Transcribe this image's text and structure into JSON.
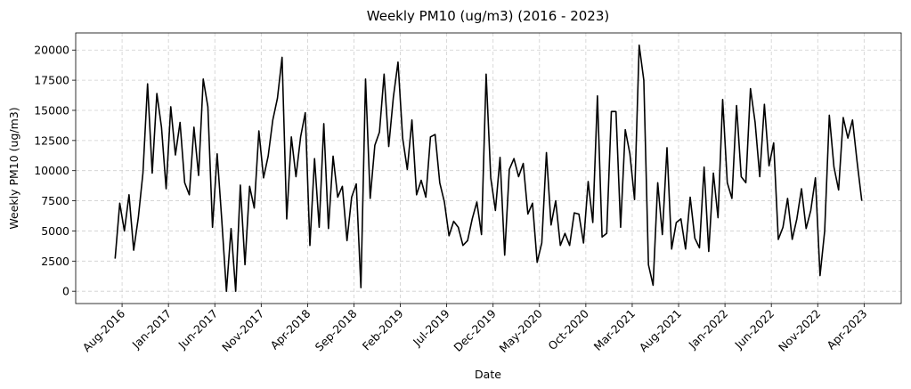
{
  "chart_data": {
    "type": "line",
    "title": "Weekly PM10 (ug/m3) (2016 - 2023)",
    "x_label": "Date",
    "y_label": "Weekly PM10 (ug/m3)",
    "color": "#000000",
    "grid": true,
    "xlim": [
      "2016-03",
      "2023-08"
    ],
    "ylim": [
      -1020,
      21420
    ],
    "yticks": [
      0,
      2500,
      5000,
      7500,
      10000,
      12500,
      15000,
      17500,
      20000
    ],
    "xticks": [
      {
        "value": "2016-08",
        "label": "Aug-2016"
      },
      {
        "value": "2017-01",
        "label": "Jan-2017"
      },
      {
        "value": "2017-06",
        "label": "Jun-2017"
      },
      {
        "value": "2017-11",
        "label": "Nov-2017"
      },
      {
        "value": "2018-04",
        "label": "Apr-2018"
      },
      {
        "value": "2018-09",
        "label": "Sep-2018"
      },
      {
        "value": "2019-02",
        "label": "Feb-2019"
      },
      {
        "value": "2019-07",
        "label": "Jul-2019"
      },
      {
        "value": "2019-12",
        "label": "Dec-2019"
      },
      {
        "value": "2020-05",
        "label": "May-2020"
      },
      {
        "value": "2020-10",
        "label": "Oct-2020"
      },
      {
        "value": "2021-03",
        "label": "Mar-2021"
      },
      {
        "value": "2021-08",
        "label": "Aug-2021"
      },
      {
        "value": "2022-01",
        "label": "Jan-2022"
      },
      {
        "value": "2022-06",
        "label": "Jun-2022"
      },
      {
        "value": "2022-11",
        "label": "Nov-2022"
      },
      {
        "value": "2023-04",
        "label": "Apr-2023"
      }
    ],
    "x": [
      "2016-07",
      "2016-07",
      "2016-08",
      "2016-08",
      "2016-09",
      "2016-09",
      "2016-10",
      "2016-10",
      "2016-11",
      "2016-11",
      "2016-12",
      "2016-12",
      "2017-01",
      "2017-01",
      "2017-02",
      "2017-02",
      "2017-03",
      "2017-03",
      "2017-04",
      "2017-04",
      "2017-05",
      "2017-05",
      "2017-06",
      "2017-06",
      "2017-07",
      "2017-07",
      "2017-08",
      "2017-08",
      "2017-09",
      "2017-09",
      "2017-10",
      "2017-10",
      "2017-11",
      "2017-11",
      "2017-12",
      "2017-12",
      "2018-01",
      "2018-01",
      "2018-02",
      "2018-02",
      "2018-03",
      "2018-03",
      "2018-04",
      "2018-04",
      "2018-05",
      "2018-05",
      "2018-06",
      "2018-06",
      "2018-07",
      "2018-07",
      "2018-08",
      "2018-08",
      "2018-09",
      "2018-09",
      "2018-10",
      "2018-10",
      "2018-11",
      "2018-11",
      "2018-12",
      "2018-12",
      "2019-01",
      "2019-01",
      "2019-02",
      "2019-02",
      "2019-03",
      "2019-03",
      "2019-04",
      "2019-04",
      "2019-05",
      "2019-05",
      "2019-06",
      "2019-06",
      "2019-07",
      "2019-07",
      "2019-08",
      "2019-08",
      "2019-09",
      "2019-09",
      "2019-10",
      "2019-10",
      "2019-11",
      "2019-11",
      "2019-12",
      "2019-12",
      "2020-01",
      "2020-01",
      "2020-02",
      "2020-02",
      "2020-03",
      "2020-03",
      "2020-04",
      "2020-04",
      "2020-05",
      "2020-05",
      "2020-06",
      "2020-06",
      "2020-07",
      "2020-07",
      "2020-08",
      "2020-08",
      "2020-09",
      "2020-09",
      "2020-10",
      "2020-10",
      "2020-11",
      "2020-11",
      "2020-12",
      "2020-12",
      "2021-01",
      "2021-01",
      "2021-02",
      "2021-02",
      "2021-03",
      "2021-03",
      "2021-04",
      "2021-04",
      "2021-05",
      "2021-05",
      "2021-06",
      "2021-06",
      "2021-07",
      "2021-07",
      "2021-08",
      "2021-08",
      "2021-09",
      "2021-09",
      "2021-10",
      "2021-10",
      "2021-11",
      "2021-11",
      "2021-12",
      "2021-12",
      "2022-01",
      "2022-01",
      "2022-02",
      "2022-02",
      "2022-03",
      "2022-03",
      "2022-04",
      "2022-04",
      "2022-05",
      "2022-05",
      "2022-06",
      "2022-06",
      "2022-07",
      "2022-07",
      "2022-08",
      "2022-08",
      "2022-09",
      "2022-09",
      "2022-10",
      "2022-10",
      "2022-11",
      "2022-11",
      "2022-12",
      "2022-12",
      "2023-01",
      "2023-01",
      "2023-02",
      "2023-02",
      "2023-03",
      "2023-03"
    ],
    "values": [
      2700,
      7300,
      5000,
      8000,
      3400,
      6100,
      9800,
      17200,
      9800,
      16400,
      13600,
      8500,
      15300,
      11300,
      14000,
      9000,
      8000,
      13600,
      9600,
      17600,
      15300,
      5300,
      11400,
      5900,
      0,
      5200,
      0,
      8800,
      2200,
      8700,
      6900,
      13300,
      9400,
      11200,
      14200,
      16000,
      19400,
      6000,
      12800,
      9500,
      12800,
      14800,
      3800,
      11000,
      5300,
      13900,
      5200,
      11200,
      7800,
      8700,
      4200,
      7800,
      8900,
      300,
      17600,
      7700,
      12100,
      13200,
      18000,
      12000,
      16100,
      19000,
      12700,
      10100,
      14200,
      8000,
      9200,
      7800,
      12800,
      13000,
      9000,
      7400,
      4600,
      5800,
      5300,
      3800,
      4200,
      6000,
      7400,
      4700,
      18000,
      9400,
      6700,
      11100,
      3000,
      10100,
      11000,
      9500,
      10600,
      6400,
      7300,
      2400,
      4000,
      11500,
      5500,
      7500,
      3800,
      4800,
      3800,
      6500,
      6400,
      4000,
      9100,
      5700,
      16200,
      4500,
      4800,
      14900,
      14900,
      5300,
      13400,
      11400,
      7600,
      20400,
      17500,
      2200,
      500,
      9000,
      4700,
      11900,
      3500,
      5700,
      6000,
      3500,
      7800,
      4400,
      3600,
      10300,
      3300,
      9800,
      6100,
      15900,
      9000,
      7700,
      15400,
      9500,
      9000,
      16800,
      14000,
      9500,
      15500,
      10400,
      12300,
      4300,
      5300,
      7700,
      4300,
      6000,
      8500,
      5200,
      6700,
      9400,
      1300,
      5000,
      14600,
      10300,
      8400,
      14400,
      12700,
      14200,
      10700,
      7500
    ]
  }
}
